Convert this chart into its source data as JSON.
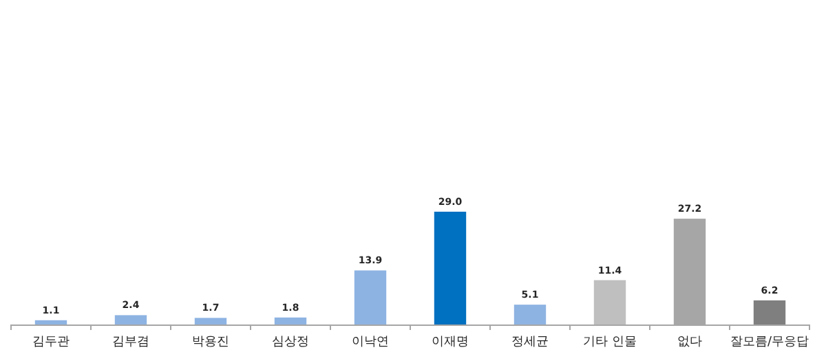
{
  "chart_data": {
    "type": "bar",
    "categories": [
      "김두관",
      "김부겸",
      "박용진",
      "심상정",
      "이낙연",
      "이재명",
      "정세균",
      "기타 인물",
      "없다",
      "잘모름/무응답"
    ],
    "values": [
      1.1,
      2.4,
      1.7,
      1.8,
      13.9,
      29.0,
      5.1,
      11.4,
      27.2,
      6.2
    ],
    "colors": [
      "#8db3e2",
      "#8db3e2",
      "#8db3e2",
      "#8db3e2",
      "#8db3e2",
      "#0070c0",
      "#8db3e2",
      "#bfbfbf",
      "#a6a6a6",
      "#7f7f7f"
    ],
    "value_labels": [
      "1.1",
      "2.4",
      "1.7",
      "1.8",
      "13.9",
      "29.0",
      "5.1",
      "11.4",
      "27.2",
      "6.2"
    ]
  }
}
